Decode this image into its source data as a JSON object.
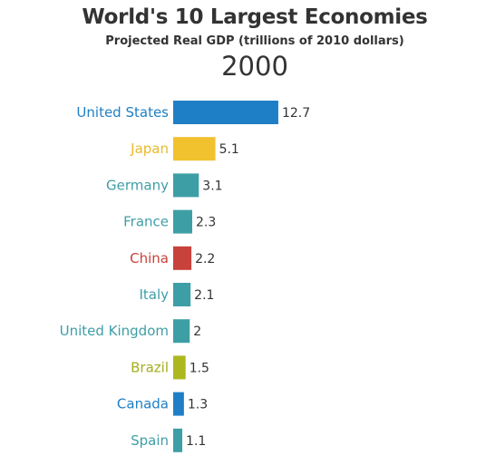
{
  "chart_data": {
    "type": "bar",
    "orientation": "horizontal",
    "title": "World's 10 Largest Economies",
    "subtitle": "Projected Real GDP (trillions of 2010 dollars)",
    "year": "2000",
    "categories": [
      "United States",
      "Japan",
      "Germany",
      "France",
      "China",
      "Italy",
      "United Kingdom",
      "Brazil",
      "Canada",
      "Spain"
    ],
    "values": [
      12.7,
      5.1,
      3.1,
      2.3,
      2.2,
      2.1,
      2,
      1.5,
      1.3,
      1.1
    ],
    "value_labels": [
      "12.7",
      "5.1",
      "3.1",
      "2.3",
      "2.2",
      "2.1",
      "2",
      "1.5",
      "1.3",
      "1.1"
    ],
    "colors": [
      "#1f7fc6",
      "#f2c12e",
      "#3e9ea6",
      "#3e9ea6",
      "#c8413b",
      "#3e9ea6",
      "#3e9ea6",
      "#adb81f",
      "#1f7fc6",
      "#3e9ea6"
    ],
    "label_colors": [
      "#1f7fc6",
      "#e9b92c",
      "#3e9ea6",
      "#3e9ea6",
      "#c8413b",
      "#3e9ea6",
      "#3e9ea6",
      "#a5ae1c",
      "#1f7fc6",
      "#3e9ea6"
    ],
    "grid": false,
    "legend": "none"
  }
}
